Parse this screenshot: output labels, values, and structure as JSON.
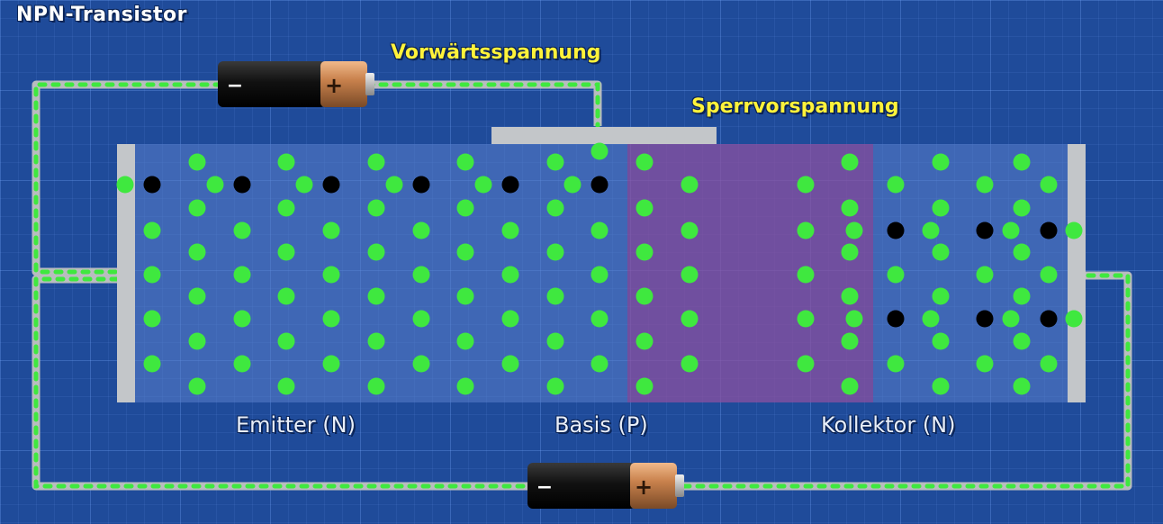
{
  "title": "NPN-Transistor",
  "forward_bias_label": "Vorwärtsspannung",
  "reverse_bias_label": "Sperrvorspannung",
  "regions": {
    "emitter": "Emitter (N)",
    "base": "Basis (P)",
    "collector": "Kollektor (N)"
  },
  "battery_top": {
    "minus": "−",
    "plus": "+"
  },
  "battery_bottom": {
    "minus": "−",
    "plus": "+"
  },
  "colors": {
    "background": "#1f4b9a",
    "wire": "#b9bcbf",
    "electron": "#3fe83f",
    "hole": "#000000",
    "label_accent": "#fff23a",
    "depletion": "#8c50a0"
  }
}
